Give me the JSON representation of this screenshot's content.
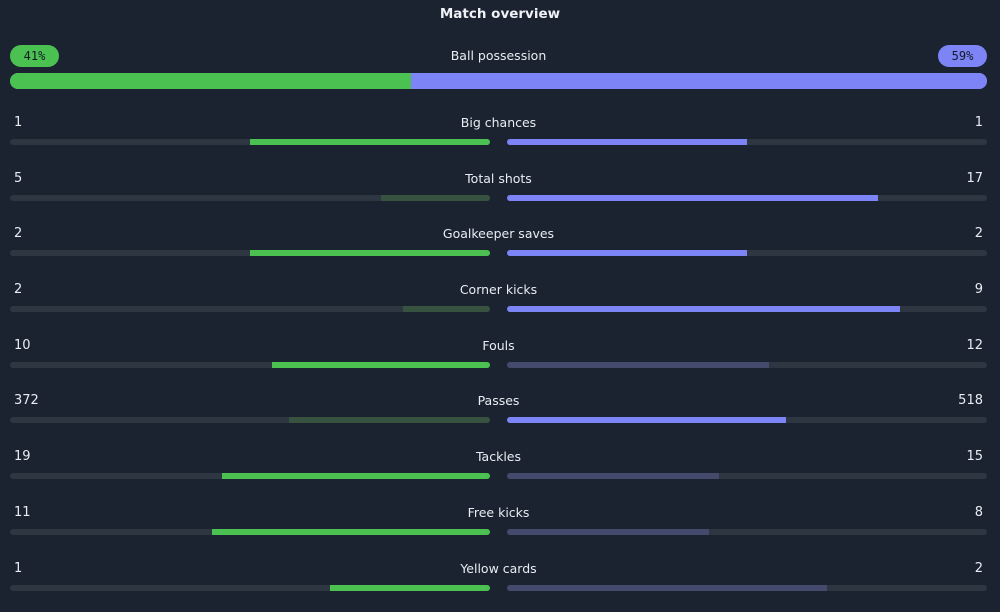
{
  "title": "Match overview",
  "possession": {
    "label": "Ball possession",
    "home": "41%",
    "away": "59%",
    "home_pct": 41,
    "away_pct": 59
  },
  "colors": {
    "home": "#4bc151",
    "away": "#7c84f6",
    "home_muted": "#37533f",
    "away_muted": "#434a6c",
    "track": "#2e3642",
    "background": "#1b2330"
  },
  "stats": [
    {
      "label": "Big chances",
      "home": "1",
      "away": "1",
      "home_share": 0.5,
      "away_share": 0.5,
      "home_leads": true,
      "away_leads": true
    },
    {
      "label": "Total shots",
      "home": "5",
      "away": "17",
      "home_share": 0.227,
      "away_share": 0.773,
      "home_leads": false,
      "away_leads": true
    },
    {
      "label": "Goalkeeper saves",
      "home": "2",
      "away": "2",
      "home_share": 0.5,
      "away_share": 0.5,
      "home_leads": true,
      "away_leads": true
    },
    {
      "label": "Corner kicks",
      "home": "2",
      "away": "9",
      "home_share": 0.182,
      "away_share": 0.818,
      "home_leads": false,
      "away_leads": true
    },
    {
      "label": "Fouls",
      "home": "10",
      "away": "12",
      "home_share": 0.455,
      "away_share": 0.545,
      "home_leads": true,
      "away_leads": false
    },
    {
      "label": "Passes",
      "home": "372",
      "away": "518",
      "home_share": 0.418,
      "away_share": 0.582,
      "home_leads": false,
      "away_leads": true
    },
    {
      "label": "Tackles",
      "home": "19",
      "away": "15",
      "home_share": 0.559,
      "away_share": 0.441,
      "home_leads": true,
      "away_leads": false
    },
    {
      "label": "Free kicks",
      "home": "11",
      "away": "8",
      "home_share": 0.579,
      "away_share": 0.421,
      "home_leads": true,
      "away_leads": false
    },
    {
      "label": "Yellow cards",
      "home": "1",
      "away": "2",
      "home_share": 0.333,
      "away_share": 0.667,
      "home_leads": true,
      "away_leads": false
    }
  ]
}
